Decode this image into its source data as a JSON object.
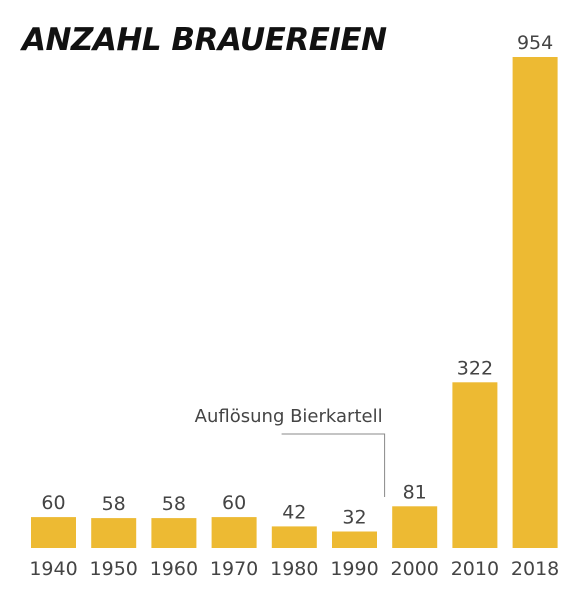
{
  "chart_data": {
    "type": "bar",
    "title": "ANZAHL BRAUEREIEN",
    "categories": [
      "1940",
      "1950",
      "1960",
      "1970",
      "1980",
      "1990",
      "2000",
      "2010",
      "2018"
    ],
    "values": [
      60,
      58,
      58,
      60,
      42,
      32,
      81,
      322,
      954
    ],
    "xlabel": "",
    "ylabel": "",
    "ylim": [
      0,
      954
    ],
    "grid": false,
    "bar_color": "#EDBA33",
    "annotations": [
      {
        "text": "Auflösung Bierkartell",
        "between": [
          "1990",
          "2000"
        ]
      }
    ]
  }
}
